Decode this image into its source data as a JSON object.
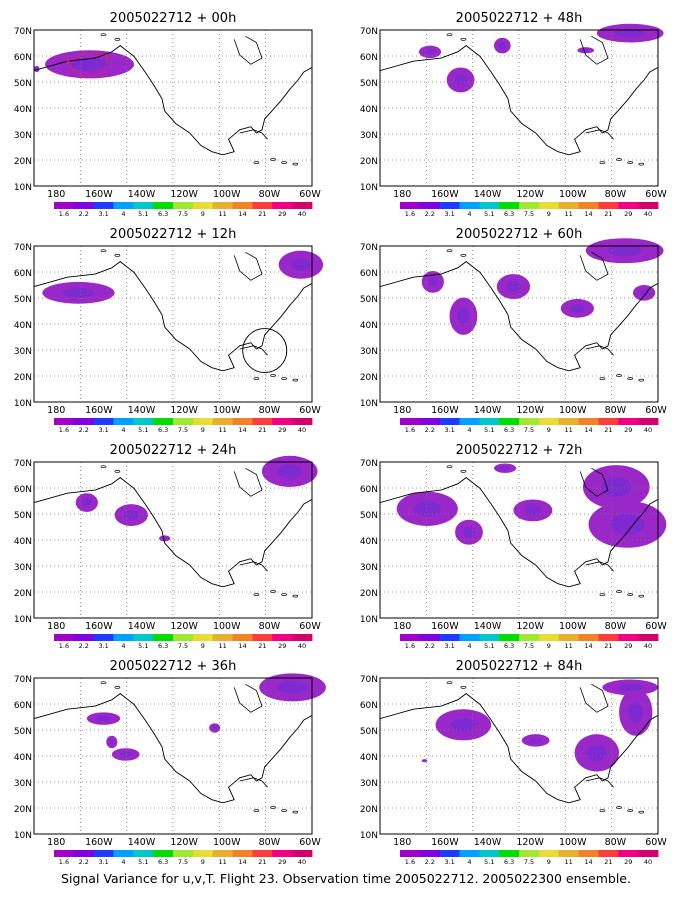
{
  "axes": {
    "lat_labels": [
      "70N",
      "60N",
      "50N",
      "40N",
      "30N",
      "20N",
      "10N"
    ],
    "lon_labels": [
      "180",
      "160W",
      "140W",
      "120W",
      "100W",
      "80W",
      "60W"
    ],
    "lon_range": [
      -190,
      -60
    ],
    "lat_range": [
      10,
      70
    ],
    "grid": "dotted"
  },
  "colorbar": {
    "labels": [
      "1.6",
      "2.2",
      "3.1",
      "4",
      "5.1",
      "6.3",
      "7.5",
      "9",
      "11",
      "14",
      "21",
      "29",
      "40"
    ],
    "colors": [
      "#a000c8",
      "#8200dc",
      "#1e3cff",
      "#00a0ff",
      "#00c8c8",
      "#00dc00",
      "#a0e632",
      "#e6dc32",
      "#e6af2d",
      "#f08228",
      "#fa3c3c",
      "#f00082",
      "#d2006e"
    ]
  },
  "field_color": "#9a28c8",
  "field_core_color": "#6a2cd8",
  "panels": [
    {
      "title": "2005022712 + 00h"
    },
    {
      "title": "2005022712 + 48h"
    },
    {
      "title": "2005022712 + 12h"
    },
    {
      "title": "2005022712 + 60h"
    },
    {
      "title": "2005022712 + 24h"
    },
    {
      "title": "2005022712 + 72h"
    },
    {
      "title": "2005022712 + 36h"
    },
    {
      "title": "2005022712 + 84h"
    }
  ],
  "caption": "Signal Variance for u,v,T. Flight 23. Observation time 2005022712. 2005022300 ensemble."
}
